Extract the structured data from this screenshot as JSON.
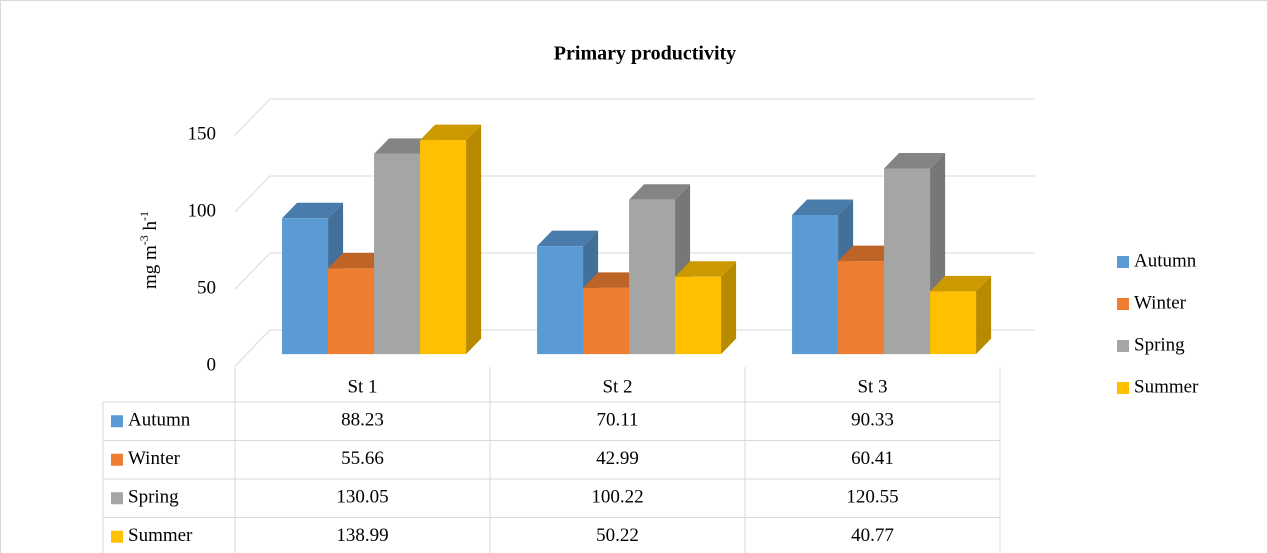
{
  "chart_data": {
    "type": "bar3d",
    "title": "Primary productivity",
    "y_label": [
      "mg m",
      "-3",
      " h",
      "-1"
    ],
    "categories": [
      "St 1",
      "St 2",
      "St 3"
    ],
    "series": [
      {
        "name": "Autumn",
        "color": "#5b9bd5",
        "values": [
          88.23,
          70.11,
          90.33
        ]
      },
      {
        "name": "Winter",
        "color": "#ed7d31",
        "values": [
          55.66,
          42.99,
          60.41
        ]
      },
      {
        "name": "Spring",
        "color": "#a5a5a5",
        "values": [
          130.05,
          100.22,
          120.55
        ]
      },
      {
        "name": "Summer",
        "color": "#ffc000",
        "values": [
          138.99,
          50.22,
          40.77
        ]
      }
    ],
    "ylim": [
      0,
      150
    ],
    "yticks": [
      0,
      50,
      100,
      150
    ],
    "grid": true,
    "legend": "right",
    "data_table": true
  }
}
